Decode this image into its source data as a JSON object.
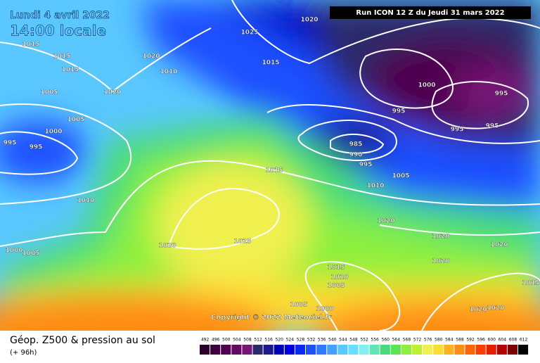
{
  "header": {
    "date": "Lundi 4 avril 2022",
    "time": "14:00 locale",
    "run": "Run ICON 12 Z du Jeudi 31 mars 2022"
  },
  "copyright": "Copyright © 2022 Meteociel.fr",
  "footer": {
    "title": "Géop. Z500 & pression au sol",
    "lead": "(+ 96h)"
  },
  "scale": {
    "values": [
      492,
      496,
      500,
      504,
      508,
      512,
      516,
      520,
      524,
      528,
      532,
      536,
      540,
      544,
      548,
      552,
      556,
      560,
      564,
      568,
      572,
      576,
      580,
      584,
      588,
      592,
      596,
      600,
      604,
      608,
      612
    ],
    "colors": [
      "#280028",
      "#3c003c",
      "#500050",
      "#640a64",
      "#781478",
      "#2a2a6a",
      "#1a1a8c",
      "#0000b4",
      "#0000dc",
      "#0a28f0",
      "#1e50ff",
      "#3278ff",
      "#46a0ff",
      "#5ac8ff",
      "#6edcff",
      "#82f0f0",
      "#64e6b4",
      "#46dc78",
      "#5ae650",
      "#8cf03c",
      "#bef032",
      "#f0f050",
      "#ffdc32",
      "#ffb41e",
      "#ff8c14",
      "#ff640a",
      "#ff3c00",
      "#e61e00",
      "#b40000",
      "#780000",
      "#000000"
    ]
  },
  "isobar_labels": [
    1015,
    1015,
    1015,
    1020,
    1025,
    1020,
    1015,
    1010,
    1020,
    1005,
    1005,
    1000,
    995,
    995,
    1000,
    995,
    995,
    995,
    995,
    985,
    990,
    995,
    1015,
    1005,
    1010,
    1010,
    1020,
    1020,
    1020,
    1020,
    1025,
    1000,
    1005,
    1020,
    1015,
    1010,
    1005,
    1015,
    1005,
    1000,
    1020,
    1020
  ]
}
